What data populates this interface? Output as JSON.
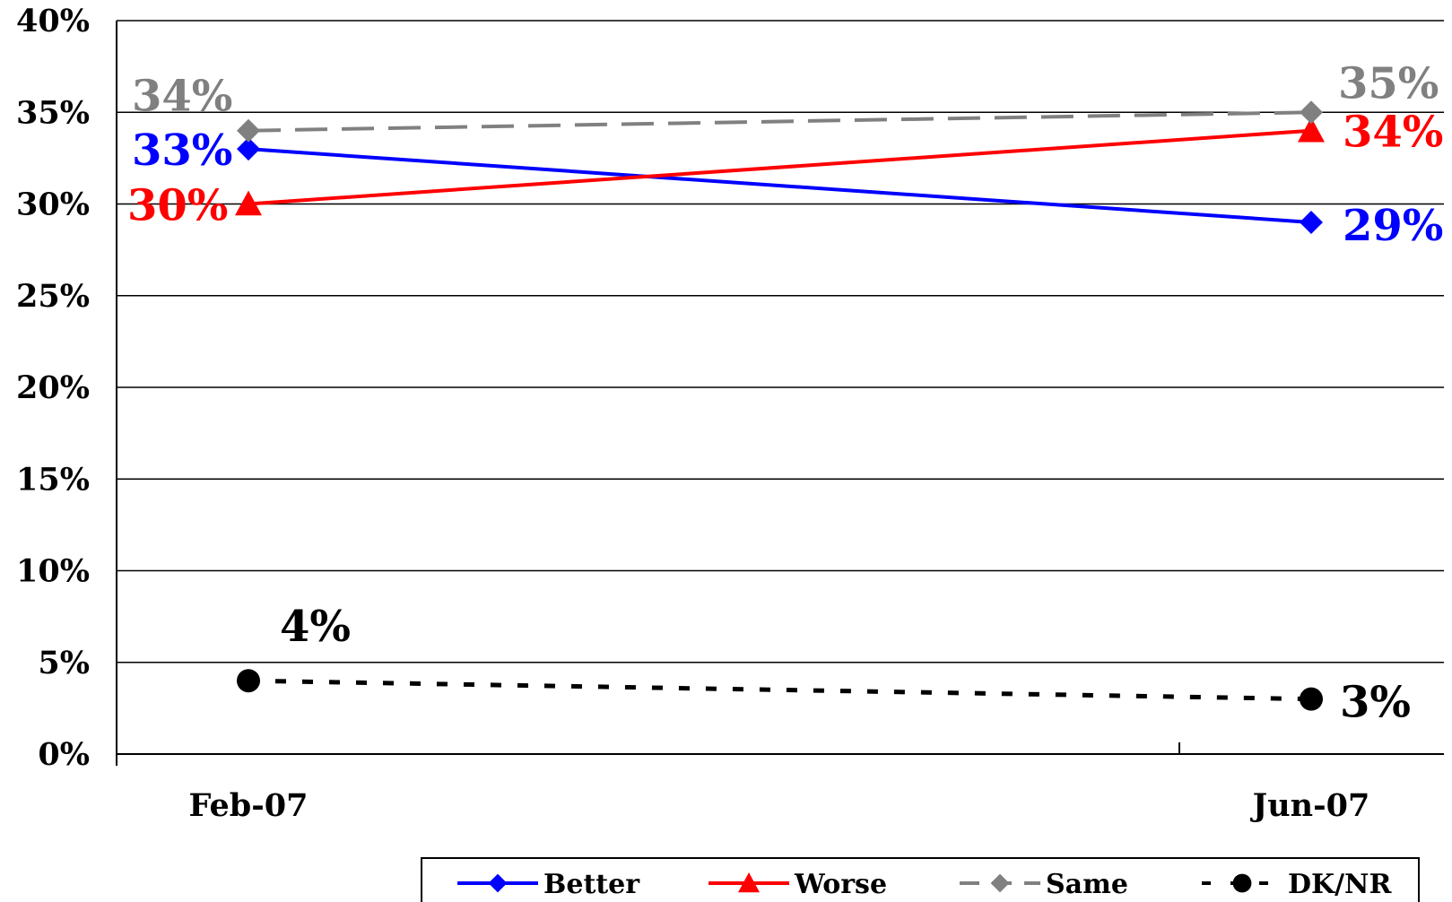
{
  "chart_data": {
    "type": "line",
    "categories": [
      "Feb-07",
      "Jun-07"
    ],
    "ylim": [
      0,
      40
    ],
    "yticks": [
      "0%",
      "5%",
      "10%",
      "15%",
      "20%",
      "25%",
      "30%",
      "35%",
      "40%"
    ],
    "ytick_values": [
      0,
      5,
      10,
      15,
      20,
      25,
      30,
      35,
      40
    ],
    "grid": true,
    "legend_position": "bottom",
    "series": [
      {
        "name": "Better",
        "values": [
          33,
          29
        ],
        "labels": [
          "33%",
          "29%"
        ],
        "color": "#0000ff",
        "marker": "diamond",
        "dash": "solid"
      },
      {
        "name": "Worse",
        "values": [
          30,
          34
        ],
        "labels": [
          "30%",
          "34%"
        ],
        "color": "#ff0000",
        "marker": "triangle",
        "dash": "solid"
      },
      {
        "name": "Same",
        "values": [
          34,
          35
        ],
        "labels": [
          "34%",
          "35%"
        ],
        "color": "#808080",
        "marker": "diamond",
        "dash": "dashed"
      },
      {
        "name": "DK/NR",
        "values": [
          4,
          3
        ],
        "labels": [
          "4%",
          "3%"
        ],
        "color": "#000000",
        "marker": "circle",
        "dash": "dotted"
      }
    ]
  }
}
